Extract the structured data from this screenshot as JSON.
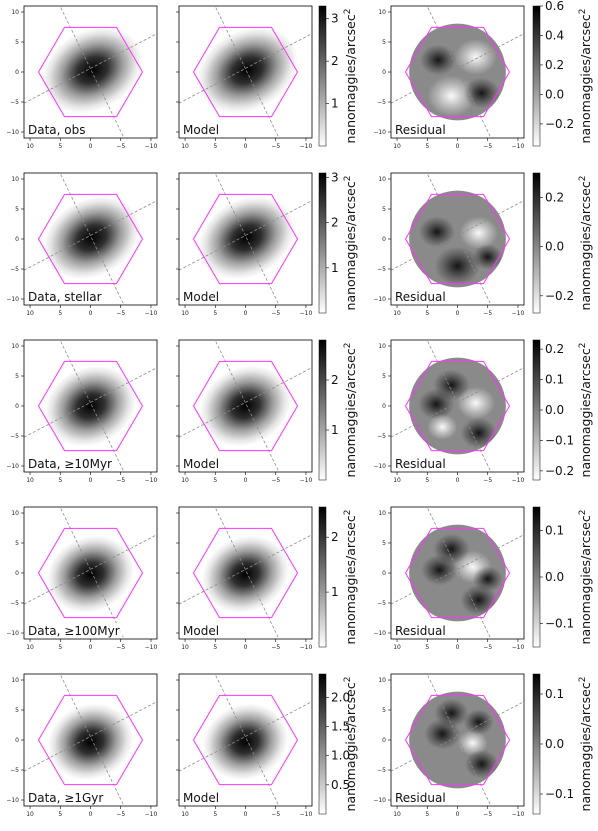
{
  "colorbar_label": "nanomaggies/arcsec",
  "colorbar_label_sup": "2",
  "hexagon_color": "#ff33ff",
  "axis_line_color": "#8c8c8c",
  "chart_data": {
    "type": "heatmap",
    "x_ticks": [
      "10",
      "5",
      "0",
      "−5",
      "−10"
    ],
    "y_ticks": [
      "10",
      "5",
      "0",
      "−5",
      "−10"
    ],
    "xlim": [
      11,
      -11
    ],
    "ylim": [
      -11,
      11
    ],
    "hexagon_radius": 8.6,
    "column_labels": [
      "Model",
      "Residual"
    ],
    "rows": [
      {
        "data_label": "Data, obs",
        "model_colorbar_ticks": [
          "1",
          "2",
          "3"
        ],
        "model_colorbar_range": [
          0,
          3.3
        ],
        "residual_colorbar_ticks": [
          "−0.2",
          "0.0",
          "0.2",
          "0.4",
          "0.6"
        ],
        "residual_colorbar_range": [
          -0.35,
          0.6
        ]
      },
      {
        "data_label": "Data, stellar",
        "model_colorbar_ticks": [
          "1",
          "2",
          "3"
        ],
        "model_colorbar_range": [
          0,
          3.1
        ],
        "residual_colorbar_ticks": [
          "−0.2",
          "0.0",
          "0.2"
        ],
        "residual_colorbar_range": [
          -0.27,
          0.3
        ]
      },
      {
        "data_label": "Data, ≥10Myr",
        "model_colorbar_ticks": [
          "1",
          "2"
        ],
        "model_colorbar_range": [
          0,
          2.8
        ],
        "residual_colorbar_ticks": [
          "−0.2",
          "−0.1",
          "0.0",
          "0.1",
          "0.2"
        ],
        "residual_colorbar_range": [
          -0.23,
          0.23
        ]
      },
      {
        "data_label": "Data, ≥100Myr",
        "model_colorbar_ticks": [
          "1",
          "2"
        ],
        "model_colorbar_range": [
          0,
          2.55
        ],
        "residual_colorbar_ticks": [
          "−0.1",
          "0.0",
          "0.1"
        ],
        "residual_colorbar_range": [
          -0.15,
          0.15
        ]
      },
      {
        "data_label": "Data, ≥1Gyr",
        "model_colorbar_ticks": [
          "0.5",
          "1.0",
          "1.5",
          "2.0"
        ],
        "model_colorbar_range": [
          0,
          2.4
        ],
        "residual_colorbar_ticks": [
          "−0.1",
          "0.0",
          "0.1"
        ],
        "residual_colorbar_range": [
          -0.14,
          0.14
        ]
      }
    ]
  }
}
